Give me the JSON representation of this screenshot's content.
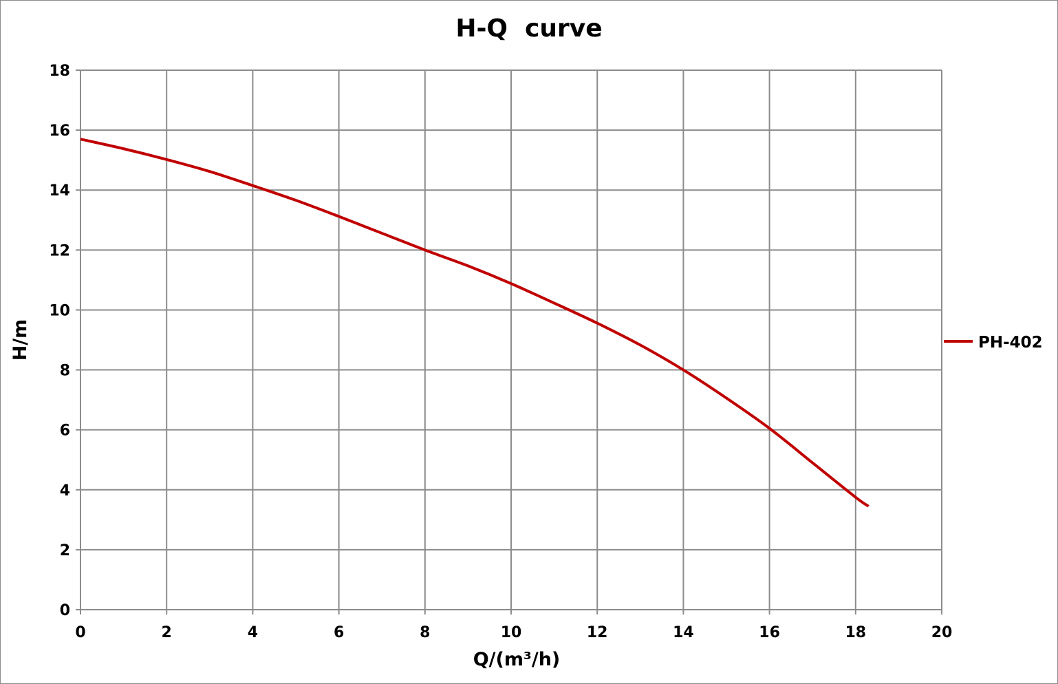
{
  "chart_data": {
    "type": "line",
    "title": "H-Q  curve",
    "xlabel": "Q/(m³/h)",
    "ylabel": "H/m",
    "xlim": [
      0,
      20
    ],
    "ylim": [
      0,
      18
    ],
    "x_ticks": [
      0,
      2,
      4,
      6,
      8,
      10,
      12,
      14,
      16,
      18,
      20
    ],
    "y_ticks": [
      0,
      2,
      4,
      6,
      8,
      10,
      12,
      14,
      16,
      18
    ],
    "grid": true,
    "legend_position": "right",
    "series": [
      {
        "name": "PH-402",
        "color": "#c00000",
        "x": [
          0,
          1,
          2,
          3,
          4,
          5,
          6,
          7,
          8,
          9,
          10,
          11,
          12,
          13,
          14,
          15,
          16,
          17,
          18,
          18.3
        ],
        "y": [
          15.7,
          15.38,
          15.02,
          14.62,
          14.15,
          13.66,
          13.12,
          12.56,
          12.0,
          11.47,
          10.88,
          10.23,
          9.56,
          8.83,
          8.0,
          7.06,
          6.05,
          4.9,
          3.75,
          3.45
        ]
      }
    ]
  }
}
